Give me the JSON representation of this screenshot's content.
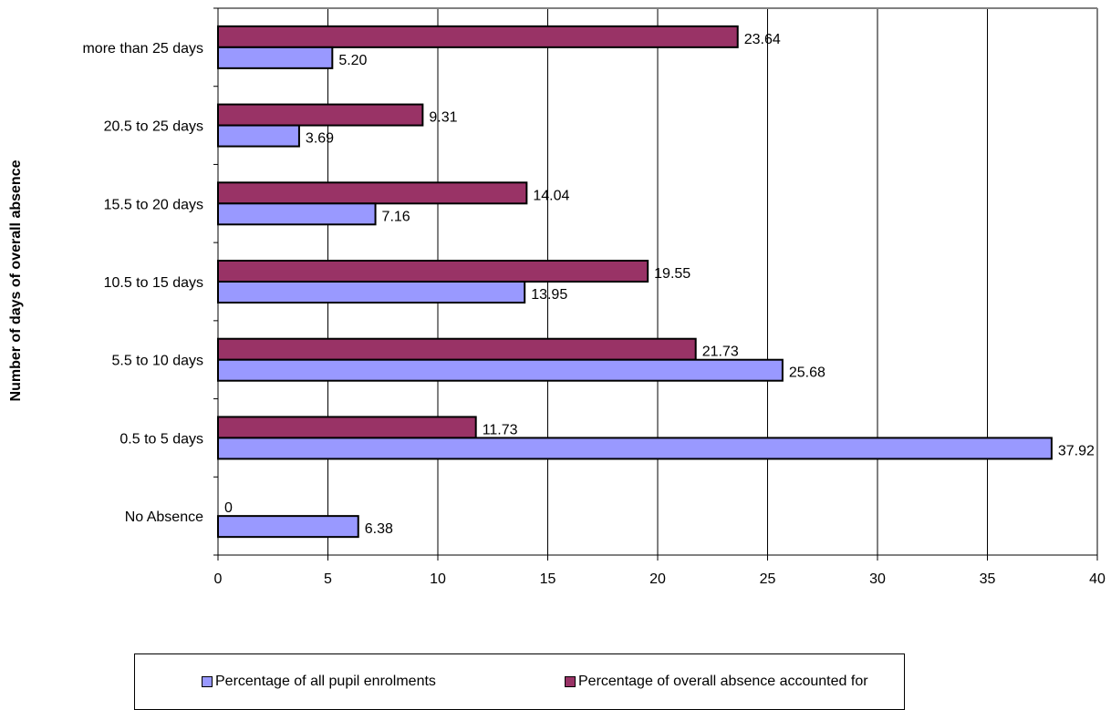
{
  "chart_data": {
    "type": "bar",
    "orientation": "horizontal",
    "title": "",
    "xlabel": "",
    "ylabel": "Number of days of overall absence",
    "xlim": [
      0,
      40
    ],
    "x_ticks": [
      "0",
      "5",
      "10",
      "15",
      "20",
      "25",
      "30",
      "35",
      "40"
    ],
    "grid": "vertical",
    "legend_position": "bottom",
    "categories": [
      "more than 25 days",
      "20.5 to 25 days",
      "15.5 to 20 days",
      "10.5 to 15 days",
      "5.5 to 10 days",
      "0.5 to 5 days",
      "No Absence"
    ],
    "series": [
      {
        "name": "Percentage of overall absence accounted for",
        "color": "#993366",
        "values": [
          23.64,
          9.31,
          14.04,
          19.55,
          21.73,
          11.73,
          0
        ],
        "labels": [
          "23.64",
          "9.31",
          "14.04",
          "19.55",
          "21.73",
          "11.73",
          "0"
        ]
      },
      {
        "name": "Percentage of all pupil enrolments",
        "color": "#9999ff",
        "values": [
          5.2,
          3.69,
          7.16,
          13.95,
          25.68,
          37.92,
          6.38
        ],
        "labels": [
          "5.20",
          "3.69",
          "7.16",
          "13.95",
          "25.68",
          "37.92",
          "6.38"
        ]
      }
    ],
    "legend": [
      {
        "label": "Percentage of all pupil enrolments",
        "color": "#9999ff"
      },
      {
        "label": "Percentage of overall absence accounted for",
        "color": "#993366"
      }
    ]
  }
}
